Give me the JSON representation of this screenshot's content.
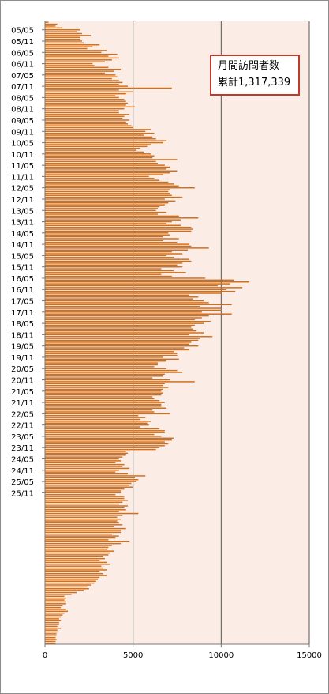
{
  "chart_data": {
    "type": "bar",
    "orientation": "horizontal",
    "bar_color": "#d06f1a",
    "plot_background": "#fcece6",
    "grid": true,
    "xlim": [
      0,
      15000
    ],
    "x_ticks": [
      "0",
      "5000",
      "10000",
      "15000"
    ],
    "y_tick_labels": [
      "05/05",
      "05/11",
      "06/05",
      "06/11",
      "07/05",
      "07/11",
      "08/05",
      "08/11",
      "09/05",
      "09/11",
      "10/05",
      "10/11",
      "11/05",
      "11/11",
      "12/05",
      "12/11",
      "13/05",
      "13/11",
      "14/05",
      "14/11",
      "15/05",
      "15/11",
      "16/05",
      "16/11",
      "17/05",
      "17/11",
      "18/05",
      "18/11",
      "19/05",
      "19/11",
      "20/05",
      "20/11",
      "21/05",
      "21/11",
      "22/05",
      "22/11",
      "23/05",
      "23/11",
      "24/05",
      "24/11",
      "25/05",
      "25/11"
    ],
    "annotation": {
      "title": "月間訪問者数",
      "total": "累計1,317,339"
    },
    "values": [
      200,
      700,
      600,
      1000,
      2000,
      1800,
      2100,
      2600,
      2000,
      2000,
      2100,
      2200,
      3100,
      2700,
      2400,
      3500,
      3200,
      4100,
      3600,
      4200,
      3800,
      3400,
      2700,
      2800,
      3600,
      4300,
      3900,
      3400,
      4000,
      4100,
      3800,
      4200,
      4400,
      4200,
      4700,
      7200,
      4200,
      5000,
      4600,
      4000,
      4200,
      4500,
      4600,
      4700,
      4600,
      5100,
      4500,
      4200,
      4200,
      4800,
      4500,
      4400,
      4800,
      4600,
      4700,
      4900,
      5000,
      6000,
      5700,
      6200,
      5600,
      6100,
      6300,
      6900,
      6700,
      6000,
      5800,
      5400,
      5200,
      5600,
      6000,
      6200,
      6100,
      7500,
      6300,
      6400,
      6800,
      7100,
      6900,
      7500,
      7100,
      6700,
      5900,
      6200,
      6500,
      7000,
      7300,
      7600,
      8500,
      7100,
      7000,
      7100,
      7200,
      7800,
      6800,
      7400,
      7000,
      6800,
      6500,
      6400,
      6300,
      6900,
      6400,
      7600,
      8700,
      7700,
      7200,
      6900,
      7700,
      8300,
      8400,
      8300,
      7000,
      7100,
      6700,
      7600,
      6700,
      7500,
      8200,
      8300,
      9300,
      8100,
      7200,
      7800,
      6900,
      7300,
      8200,
      8300,
      7800,
      7500,
      7800,
      6600,
      7300,
      8000,
      6600,
      7200,
      9100,
      10700,
      11600,
      10500,
      9800,
      11200,
      10300,
      10800,
      10000,
      8200,
      8700,
      8400,
      9000,
      9300,
      10600,
      8800,
      10000,
      10000,
      8900,
      10600,
      9300,
      8900,
      8500,
      9400,
      9000,
      8500,
      8300,
      8400,
      8600,
      9000,
      8200,
      9500,
      8800,
      8700,
      8300,
      8200,
      8700,
      7900,
      8200,
      7300,
      7500,
      7500,
      6700,
      7600,
      6900,
      6400,
      6400,
      6200,
      6900,
      7500,
      7800,
      6800,
      6700,
      6100,
      7100,
      8500,
      6800,
      6700,
      7000,
      6700,
      6600,
      6700,
      6600,
      6100,
      6200,
      6500,
      6800,
      6600,
      6600,
      6900,
      6100,
      6200,
      7100,
      5300,
      5700,
      5400,
      6000,
      5800,
      5900,
      5400,
      6500,
      6800,
      6800,
      6200,
      6600,
      7300,
      7200,
      6800,
      7000,
      6800,
      6500,
      6300,
      4600,
      4700,
      4600,
      4400,
      4200,
      4300,
      4000,
      4500,
      4400,
      4800,
      4200,
      4000,
      4700,
      5700,
      5100,
      5300,
      5200,
      4900,
      4800,
      5000,
      4500,
      4300,
      4300,
      4000,
      4500,
      4500,
      4700,
      4400,
      4200,
      4700,
      4500,
      4600,
      4200,
      5300,
      4400,
      4100,
      4300,
      4100,
      4200,
      4400,
      3900,
      4600,
      4300,
      4300,
      3800,
      4200,
      4000,
      3600,
      4800,
      4300,
      3800,
      3600,
      3500,
      3900,
      3700,
      3600,
      3300,
      3400,
      3100,
      3500,
      3700,
      3200,
      3300,
      3500,
      3100,
      3300,
      3500,
      3100,
      3000,
      2900,
      2800,
      2600,
      2400,
      2500,
      2200,
      1800,
      1500,
      1100,
      1200,
      1100,
      1200,
      1200,
      1000,
      900,
      1200,
      1300,
      1100,
      1000,
      900,
      800,
      900,
      800,
      800,
      700,
      900,
      700,
      700,
      650,
      650,
      600,
      650,
      600,
      600
    ]
  }
}
